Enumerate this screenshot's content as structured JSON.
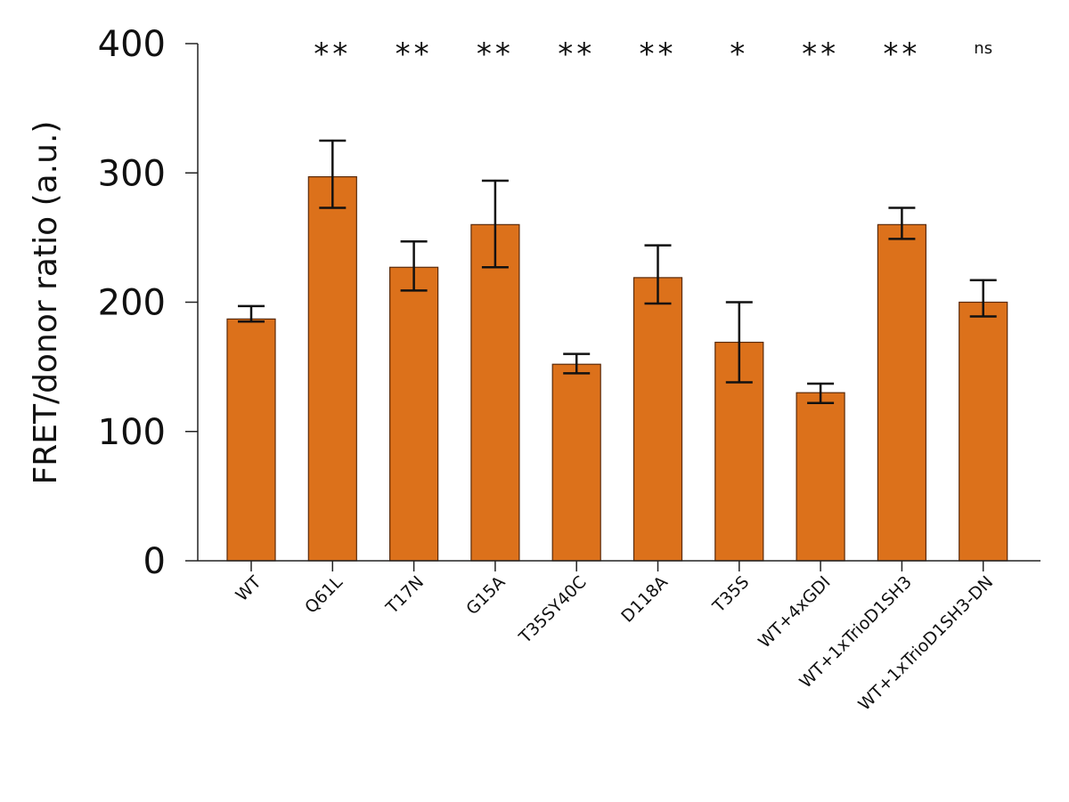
{
  "chart_data": {
    "type": "bar",
    "title": "",
    "xlabel": "",
    "ylabel": "FRET/donor ratio (a.u.)",
    "ylim": [
      0,
      400
    ],
    "yticks": [
      0,
      100,
      200,
      300,
      400
    ],
    "grid": false,
    "bar_color": "#dc711b",
    "categories": [
      "WT",
      "Q61L",
      "T17N",
      "G15A",
      "T35SY40C",
      "D118A",
      "T35S",
      "WT+4xGDI",
      "WT+1xTrioD1SH3",
      "WT+1xTrioD1SH3-DN"
    ],
    "values": [
      187,
      297,
      227,
      260,
      152,
      219,
      169,
      130,
      260,
      200
    ],
    "error_upper": [
      197,
      325,
      247,
      294,
      160,
      244,
      200,
      137,
      273,
      217
    ],
    "error_lower": [
      185,
      273,
      209,
      227,
      145,
      199,
      138,
      122,
      249,
      189
    ],
    "significance": [
      "",
      "**",
      "**",
      "**",
      "**",
      "**",
      "*",
      "**",
      "**",
      "ns"
    ]
  }
}
